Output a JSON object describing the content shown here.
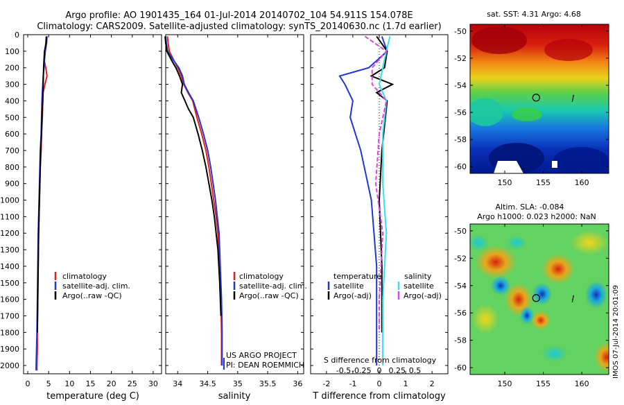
{
  "title": {
    "line1": "Argo profile: AO 1901435_164 01-Jul-2014 20140702_104 54.911S 154.078E",
    "line2": "Climatology: CARS2009. Satellite-adjusted climatology: synTS_20140630.nc (1.7d earlier)"
  },
  "colors": {
    "climatology": "#e0201b",
    "satellite": "#1f35d6",
    "argo": "#000000",
    "sal_satellite": "#34e0f0",
    "sal_argo": "#e53ee5"
  },
  "depth_axis": {
    "range": [
      0,
      2050
    ],
    "ticks": [
      "0",
      "100",
      "200",
      "300",
      "400",
      "500",
      "600",
      "700",
      "800",
      "900",
      "1000",
      "1100",
      "1200",
      "1300",
      "1400",
      "1500",
      "1600",
      "1700",
      "1800",
      "1900",
      "2000"
    ]
  },
  "chart_data": [
    {
      "id": "temperature",
      "type": "line",
      "xlabel": "temperature (deg C)",
      "ylabel": "",
      "xlim": [
        -1,
        32
      ],
      "xticks": [
        "0",
        "5",
        "10",
        "15",
        "20",
        "25",
        "30"
      ],
      "legend": [
        "climatology",
        "satellite-adj. clim.",
        "Argo(..raw -QC)"
      ],
      "series": [
        {
          "name": "climatology",
          "color_key": "climatology",
          "x": [
            4.4,
            4.3,
            4.1,
            3.9,
            4.3,
            4.6,
            4.1,
            3.7,
            3.6,
            3.5,
            3.3,
            3.2,
            3.0,
            2.9,
            2.8,
            2.6,
            2.5,
            2.4,
            2.3,
            2.3,
            2.2,
            2.2
          ],
          "depth": [
            10,
            50,
            100,
            150,
            200,
            250,
            300,
            350,
            400,
            500,
            600,
            700,
            800,
            900,
            1000,
            1200,
            1400,
            1600,
            1800,
            1900,
            2000,
            2030
          ]
        },
        {
          "name": "satellite-adj. clim.",
          "color_key": "satellite",
          "x": [
            4.6,
            4.5,
            4.2,
            4.0,
            3.9,
            3.7,
            3.6,
            3.5,
            3.4,
            3.3,
            3.2,
            3.0,
            2.9,
            2.8,
            2.7,
            2.5,
            2.4,
            2.3,
            2.2,
            2.1,
            2.0,
            2.0
          ],
          "depth": [
            10,
            50,
            100,
            150,
            200,
            250,
            300,
            350,
            400,
            500,
            600,
            700,
            800,
            900,
            1000,
            1200,
            1400,
            1600,
            1800,
            1900,
            2000,
            2030
          ]
        },
        {
          "name": "Argo(..raw -QC)",
          "color_key": "argo",
          "x": [
            4.5,
            4.4,
            4.0,
            3.9,
            3.8,
            3.7,
            3.6,
            3.6,
            3.4,
            3.3,
            3.1,
            3.0,
            2.9,
            2.8,
            2.6,
            2.5,
            2.4,
            2.3
          ],
          "depth": [
            10,
            50,
            100,
            150,
            200,
            300,
            350,
            400,
            500,
            600,
            700,
            800,
            900,
            1000,
            1200,
            1400,
            1600,
            1800
          ]
        }
      ]
    },
    {
      "id": "salinity",
      "type": "line",
      "xlabel": "salinity",
      "ylabel": "",
      "xlim": [
        33.8,
        36.1
      ],
      "xticks": [
        "34",
        "34.5",
        "35",
        "35.5",
        "36"
      ],
      "legend": [
        "climatology",
        "satellite-adj. clim.",
        "Argo(..raw -QC)"
      ],
      "series": [
        {
          "name": "climatology",
          "color_key": "climatology",
          "x": [
            33.83,
            33.84,
            33.86,
            33.93,
            34.0,
            34.06,
            34.1,
            34.17,
            34.25,
            34.32,
            34.4,
            34.47,
            34.52,
            34.56,
            34.6,
            34.64,
            34.67,
            34.7,
            34.72,
            34.73,
            34.73
          ],
          "depth": [
            10,
            50,
            100,
            150,
            200,
            250,
            300,
            350,
            400,
            500,
            600,
            700,
            800,
            900,
            1000,
            1100,
            1200,
            1400,
            1600,
            1800,
            2000
          ]
        },
        {
          "name": "satellite-adj. clim.",
          "color_key": "satellite",
          "x": [
            33.8,
            33.81,
            33.83,
            33.92,
            34.02,
            34.08,
            34.11,
            34.18,
            34.26,
            34.35,
            34.43,
            34.5,
            34.55,
            34.59,
            34.63,
            34.66,
            34.69,
            34.71,
            34.73,
            34.74,
            34.74
          ],
          "depth": [
            10,
            50,
            100,
            150,
            200,
            250,
            300,
            350,
            400,
            500,
            600,
            700,
            800,
            900,
            1000,
            1100,
            1200,
            1400,
            1600,
            1800,
            2000
          ]
        },
        {
          "name": "Argo(..raw -QC)",
          "color_key": "argo",
          "x": [
            33.79,
            33.8,
            33.82,
            33.89,
            33.97,
            34.03,
            34.08,
            34.06,
            34.12,
            34.18,
            34.26,
            34.34,
            34.41,
            34.47,
            34.52,
            34.57,
            34.61,
            34.67,
            34.7,
            34.72
          ],
          "depth": [
            10,
            50,
            100,
            150,
            200,
            250,
            300,
            350,
            400,
            450,
            500,
            600,
            700,
            800,
            900,
            1000,
            1100,
            1300,
            1500,
            1700
          ]
        }
      ]
    },
    {
      "id": "difference",
      "type": "line",
      "xlabel": "T difference from climatology",
      "top_label": "S difference from climatology",
      "xlim": [
        -2.6,
        2.6
      ],
      "xticks": [
        "-2",
        "-1",
        "0",
        "1",
        "2"
      ],
      "top_ticks": [
        "-0.5",
        "-0.25",
        "0",
        "0.25",
        "0.5"
      ],
      "legend_headers": [
        "temperature",
        "salinity"
      ],
      "legend": [
        "satellite",
        "Argo(-adj)",
        "satellite",
        "Argo(-adj)"
      ],
      "series": [
        {
          "name": "temperature satellite",
          "color_key": "satellite",
          "x": [
            0.1,
            0.3,
            -0.4,
            -1.5,
            -1.3,
            -1.0,
            -1.1,
            -0.7,
            -0.3,
            -0.1,
            -0.1,
            -0.1
          ],
          "depth": [
            10,
            100,
            200,
            250,
            300,
            400,
            500,
            700,
            1000,
            1400,
            1800,
            2000
          ]
        },
        {
          "name": "temperature Argo(-adj)",
          "color_key": "argo",
          "x": [
            -0.1,
            0.3,
            0.2,
            -0.3,
            0.5,
            -0.1,
            0.3,
            0.1,
            0.0,
            0.1,
            0.1
          ],
          "depth": [
            10,
            100,
            200,
            250,
            300,
            350,
            400,
            700,
            1000,
            1400,
            1800
          ]
        },
        {
          "name": "salinity satellite",
          "color_key": "sal_satellite",
          "x": [
            0.15,
            0.1,
            0.05,
            0.0,
            0.1,
            0.05,
            0.05,
            0.1,
            0.05,
            0.05
          ],
          "depth": [
            10,
            100,
            200,
            300,
            400,
            600,
            900,
            1200,
            1600,
            2000
          ]
        },
        {
          "name": "salinity Argo(-adj)",
          "color_key": "sal_argo",
          "x": [
            -0.2,
            0.1,
            -0.1,
            -0.1,
            0.1,
            0.0,
            -0.05,
            0.05,
            0.0,
            0.0
          ],
          "depth": [
            10,
            100,
            200,
            300,
            400,
            600,
            900,
            1200,
            1600,
            1800
          ]
        }
      ],
      "credit": [
        "US ARGO PROJECT",
        "PI: DEAN ROEMMICH"
      ]
    }
  ],
  "map_sst": {
    "title": "sat. SST: 4.31  Argo: 4.68",
    "yticks": [
      "-50",
      "-52",
      "-54",
      "-56",
      "-58",
      "-60"
    ],
    "xticks": [
      "150",
      "155",
      "160"
    ],
    "lat_range": [
      -60.5,
      -49.5
    ],
    "lon_range": [
      145.5,
      163.5
    ],
    "float_lon": 154.078,
    "float_lat": -54.911
  },
  "map_sla": {
    "title_line1": "Altim. SLA: -0.084",
    "title_line2": "Argo h1000: 0.023 h2000: NaN",
    "yticks": [
      "-50",
      "-52",
      "-54",
      "-56",
      "-58",
      "-60"
    ],
    "xticks": [
      "150",
      "155",
      "160"
    ],
    "lat_range": [
      -60.5,
      -49.5
    ],
    "lon_range": [
      145.5,
      163.5
    ],
    "float_lon": 154.078,
    "float_lat": -54.911
  },
  "watermark": "IMOS 07-Jul-2014 20:01:09"
}
